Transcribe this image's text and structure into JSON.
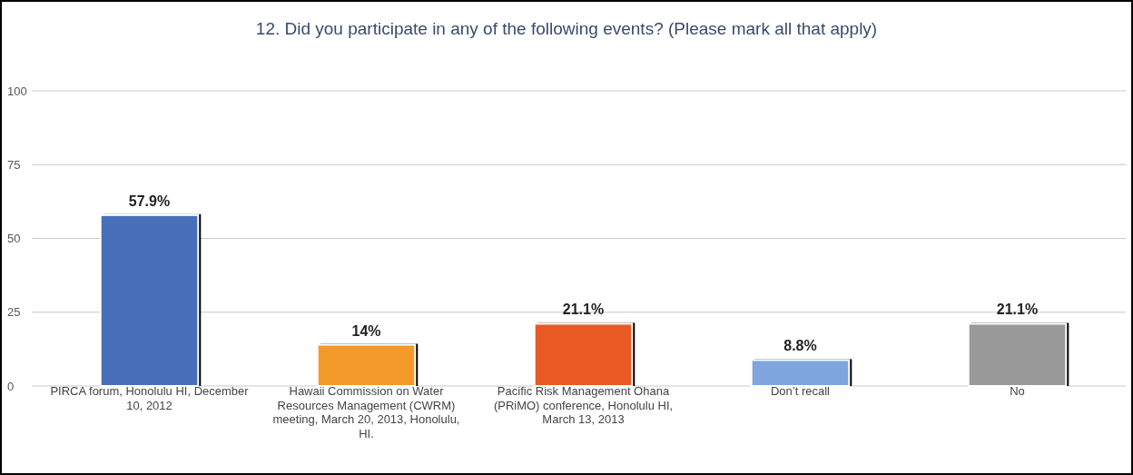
{
  "chart_data": {
    "type": "bar",
    "title": "12. Did you participate in any of the following events? (Please mark all that apply)",
    "categories": [
      "PIRCA forum, Honolulu HI, December 10, 2012",
      "Hawaii Commission on Water Resources Management (CWRM) meeting, March 20, 2013, Honolulu, HI.",
      "Pacific Risk Management Ohana (PRiMO) conference, Honolulu HI, March 13, 2013",
      "Don’t recall",
      "No"
    ],
    "values": [
      57.9,
      14,
      21.1,
      8.8,
      21.1
    ],
    "colors": [
      "#4a6fba",
      "#f39a2a",
      "#e95a24",
      "#7ea6dd",
      "#999999"
    ],
    "value_labels": [
      "57.9%",
      "14%",
      "21.1%",
      "8.8%",
      "21.1%"
    ],
    "ylim": [
      0,
      100
    ],
    "yticks": [
      0,
      25,
      50,
      75,
      100
    ],
    "grid": "y"
  }
}
